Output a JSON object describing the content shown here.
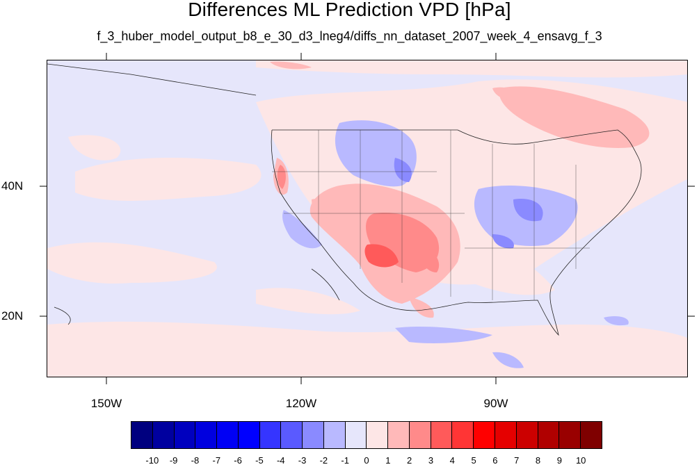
{
  "title": "Differences ML Prediction VPD [hPa]",
  "subtitle": "f_3_huber_model_output_b8_e_30_d3_lneg4/diffs_nn_dataset_2007_week_4_ensavg_f_3",
  "map": {
    "projection": "cylindrical-equidistant",
    "lon_range": [
      -160,
      -62
    ],
    "lat_range": [
      11,
      59
    ],
    "lat_labels": [
      "40N",
      "20N"
    ],
    "lon_labels": [
      "150W",
      "120W",
      "90W"
    ],
    "background_color": "#e6e6fb"
  },
  "colorbar": {
    "labels": [
      "-10",
      "-9",
      "-8",
      "-7",
      "-6",
      "-5",
      "-4",
      "-3",
      "-2",
      "-1",
      "0",
      "1",
      "2",
      "3",
      "4",
      "5",
      "6",
      "7",
      "8",
      "9",
      "10"
    ],
    "colors": [
      "#00007f",
      "#00009f",
      "#0000bf",
      "#0000df",
      "#0000f5",
      "#0000ff",
      "#3535ff",
      "#5a5aff",
      "#8a8aff",
      "#b9b9ff",
      "#e6e6fb",
      "#fde6e6",
      "#ffb9b9",
      "#ff8a8a",
      "#ff5a5a",
      "#ff3535",
      "#ff0000",
      "#e50000",
      "#cc0000",
      "#b00000",
      "#990000",
      "#7f0000"
    ]
  }
}
